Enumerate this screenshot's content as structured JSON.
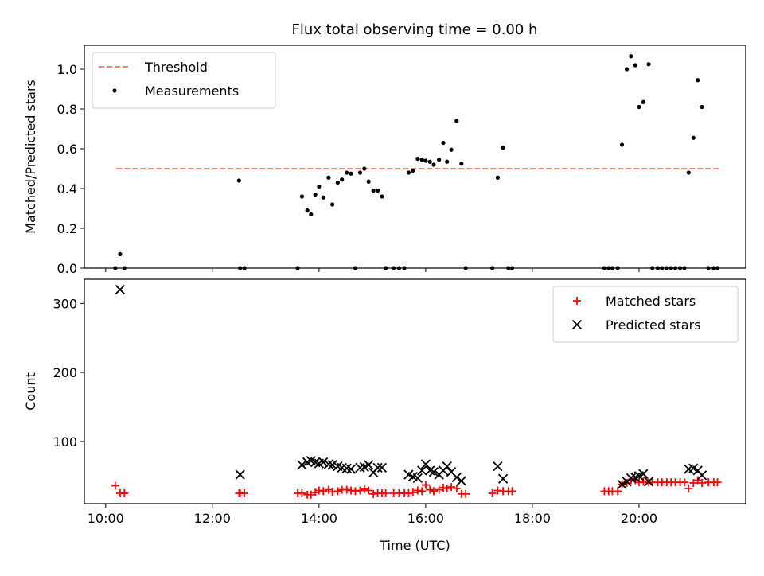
{
  "title": "Flux total observing time = 0.00 h",
  "chart_data": [
    {
      "type": "scatter",
      "ylabel": "Matched/Predicted stars",
      "xlabel": "",
      "xlim": [
        9.6,
        22.0
      ],
      "ylim": [
        0,
        1.12
      ],
      "yticks": [
        0.0,
        0.2,
        0.4,
        0.6,
        0.8,
        1.0
      ],
      "ytick_labels": [
        "0.0",
        "0.2",
        "0.4",
        "0.6",
        "0.8",
        "1.0"
      ],
      "legend": {
        "position": "top-left",
        "entries": [
          {
            "label": "Threshold",
            "style": "dashed-line",
            "color": "#ff7f7f"
          },
          {
            "label": "Measurements",
            "style": "dot",
            "color": "#000000"
          }
        ]
      },
      "threshold": {
        "value": 0.5,
        "x": [
          10.2,
          21.5
        ],
        "color": "#ff7f7f"
      },
      "series": [
        {
          "marker": "dot",
          "color": "#000000",
          "points": [
            [
              10.18,
              0.0
            ],
            [
              10.27,
              0.07
            ],
            [
              10.35,
              0.0
            ],
            [
              12.5,
              0.44
            ],
            [
              12.52,
              0.0
            ],
            [
              12.6,
              0.0
            ],
            [
              13.6,
              0.0
            ],
            [
              13.68,
              0.36
            ],
            [
              13.78,
              0.29
            ],
            [
              13.85,
              0.27
            ],
            [
              13.93,
              0.37
            ],
            [
              14.0,
              0.41
            ],
            [
              14.08,
              0.355
            ],
            [
              14.18,
              0.455
            ],
            [
              14.25,
              0.32
            ],
            [
              14.35,
              0.43
            ],
            [
              14.43,
              0.445
            ],
            [
              14.52,
              0.48
            ],
            [
              14.6,
              0.475
            ],
            [
              14.68,
              0.0
            ],
            [
              14.77,
              0.48
            ],
            [
              14.85,
              0.5
            ],
            [
              14.93,
              0.435
            ],
            [
              15.02,
              0.39
            ],
            [
              15.1,
              0.39
            ],
            [
              15.18,
              0.36
            ],
            [
              15.25,
              0.0
            ],
            [
              15.4,
              0.0
            ],
            [
              15.5,
              0.0
            ],
            [
              15.6,
              0.0
            ],
            [
              15.68,
              0.48
            ],
            [
              15.76,
              0.49
            ],
            [
              15.85,
              0.55
            ],
            [
              15.93,
              0.545
            ],
            [
              16.0,
              0.54
            ],
            [
              16.08,
              0.535
            ],
            [
              16.15,
              0.52
            ],
            [
              16.25,
              0.545
            ],
            [
              16.33,
              0.63
            ],
            [
              16.4,
              0.535
            ],
            [
              16.48,
              0.595
            ],
            [
              16.58,
              0.74
            ],
            [
              16.67,
              0.525
            ],
            [
              16.75,
              0.0
            ],
            [
              17.25,
              0.0
            ],
            [
              17.35,
              0.455
            ],
            [
              17.45,
              0.605
            ],
            [
              17.55,
              0.0
            ],
            [
              17.62,
              0.0
            ],
            [
              19.35,
              0.0
            ],
            [
              19.43,
              0.0
            ],
            [
              19.5,
              0.0
            ],
            [
              19.6,
              0.0
            ],
            [
              19.68,
              0.62
            ],
            [
              19.77,
              1.0
            ],
            [
              19.85,
              1.065
            ],
            [
              19.93,
              1.02
            ],
            [
              20.0,
              0.81
            ],
            [
              20.08,
              0.835
            ],
            [
              20.18,
              1.025
            ],
            [
              20.25,
              0.0
            ],
            [
              20.35,
              0.0
            ],
            [
              20.43,
              0.0
            ],
            [
              20.52,
              0.0
            ],
            [
              20.6,
              0.0
            ],
            [
              20.68,
              0.0
            ],
            [
              20.77,
              0.0
            ],
            [
              20.85,
              0.0
            ],
            [
              20.93,
              0.48
            ],
            [
              21.02,
              0.655
            ],
            [
              21.1,
              0.945
            ],
            [
              21.18,
              0.81
            ],
            [
              21.3,
              0.0
            ],
            [
              21.4,
              0.0
            ],
            [
              21.47,
              0.0
            ]
          ]
        }
      ]
    },
    {
      "type": "scatter",
      "ylabel": "Count",
      "xlabel": "Time (UTC)",
      "xlim": [
        9.6,
        22.0
      ],
      "ylim": [
        10,
        335
      ],
      "yticks": [
        100,
        200,
        300
      ],
      "ytick_labels": [
        "100",
        "200",
        "300"
      ],
      "xticks": [
        10,
        12,
        14,
        16,
        18,
        20
      ],
      "xtick_labels": [
        "10:00",
        "12:00",
        "14:00",
        "16:00",
        "18:00",
        "20:00"
      ],
      "legend": {
        "position": "top-right",
        "entries": [
          {
            "label": "Matched stars",
            "style": "plus",
            "color": "#ff0000"
          },
          {
            "label": "Predicted stars",
            "style": "cross",
            "color": "#000000"
          }
        ]
      },
      "series": [
        {
          "name": "Matched stars",
          "marker": "plus",
          "color": "#ff0000",
          "points": [
            [
              10.18,
              36
            ],
            [
              10.27,
              25
            ],
            [
              10.35,
              25
            ],
            [
              12.5,
              25
            ],
            [
              12.52,
              25
            ],
            [
              12.6,
              25
            ],
            [
              13.6,
              25
            ],
            [
              13.68,
              25
            ],
            [
              13.78,
              23
            ],
            [
              13.85,
              23
            ],
            [
              13.93,
              26
            ],
            [
              14.0,
              29
            ],
            [
              14.08,
              28
            ],
            [
              14.18,
              30
            ],
            [
              14.25,
              27
            ],
            [
              14.35,
              28
            ],
            [
              14.43,
              30
            ],
            [
              14.52,
              30
            ],
            [
              14.6,
              29
            ],
            [
              14.68,
              28
            ],
            [
              14.77,
              29
            ],
            [
              14.85,
              31
            ],
            [
              14.93,
              29
            ],
            [
              15.02,
              24
            ],
            [
              15.1,
              25
            ],
            [
              15.18,
              25
            ],
            [
              15.25,
              25
            ],
            [
              15.4,
              25
            ],
            [
              15.5,
              25
            ],
            [
              15.6,
              25
            ],
            [
              15.68,
              25
            ],
            [
              15.76,
              26
            ],
            [
              15.85,
              29
            ],
            [
              15.93,
              28
            ],
            [
              16.0,
              37
            ],
            [
              16.08,
              30
            ],
            [
              16.15,
              28
            ],
            [
              16.25,
              30
            ],
            [
              16.33,
              33
            ],
            [
              16.4,
              32
            ],
            [
              16.48,
              34
            ],
            [
              16.58,
              32
            ],
            [
              16.67,
              24
            ],
            [
              16.75,
              24
            ],
            [
              17.25,
              25
            ],
            [
              17.35,
              29
            ],
            [
              17.45,
              28
            ],
            [
              17.55,
              28
            ],
            [
              17.62,
              28
            ],
            [
              19.35,
              28
            ],
            [
              19.43,
              28
            ],
            [
              19.5,
              28
            ],
            [
              19.6,
              28
            ],
            [
              19.68,
              38
            ],
            [
              19.77,
              40
            ],
            [
              19.85,
              44
            ],
            [
              19.93,
              44
            ],
            [
              20.0,
              41
            ],
            [
              20.08,
              42
            ],
            [
              20.18,
              41
            ],
            [
              20.25,
              41
            ],
            [
              20.35,
              41
            ],
            [
              20.43,
              41
            ],
            [
              20.52,
              41
            ],
            [
              20.6,
              41
            ],
            [
              20.68,
              41
            ],
            [
              20.77,
              41
            ],
            [
              20.85,
              41
            ],
            [
              20.93,
              32
            ],
            [
              21.02,
              40
            ],
            [
              21.1,
              44
            ],
            [
              21.18,
              40
            ],
            [
              21.3,
              41
            ],
            [
              21.4,
              41
            ],
            [
              21.47,
              41
            ]
          ]
        },
        {
          "name": "Predicted stars",
          "marker": "cross",
          "color": "#000000",
          "points": [
            [
              10.27,
              320
            ],
            [
              12.52,
              52
            ],
            [
              13.68,
              66
            ],
            [
              13.78,
              70
            ],
            [
              13.85,
              72
            ],
            [
              13.93,
              70
            ],
            [
              14.0,
              68
            ],
            [
              14.08,
              70
            ],
            [
              14.18,
              67
            ],
            [
              14.25,
              66
            ],
            [
              14.35,
              64
            ],
            [
              14.43,
              62
            ],
            [
              14.52,
              61
            ],
            [
              14.6,
              60
            ],
            [
              14.77,
              62
            ],
            [
              14.85,
              63
            ],
            [
              14.93,
              66
            ],
            [
              15.02,
              55
            ],
            [
              15.1,
              62
            ],
            [
              15.18,
              62
            ],
            [
              15.68,
              52
            ],
            [
              15.76,
              49
            ],
            [
              15.85,
              47
            ],
            [
              15.93,
              58
            ],
            [
              16.0,
              67
            ],
            [
              16.08,
              58
            ],
            [
              16.15,
              56
            ],
            [
              16.25,
              52
            ],
            [
              16.33,
              58
            ],
            [
              16.4,
              64
            ],
            [
              16.48,
              56
            ],
            [
              16.58,
              48
            ],
            [
              16.67,
              43
            ],
            [
              17.35,
              64
            ],
            [
              17.45,
              46
            ],
            [
              19.68,
              38
            ],
            [
              19.77,
              42
            ],
            [
              19.85,
              47
            ],
            [
              19.93,
              48
            ],
            [
              20.0,
              50
            ],
            [
              20.08,
              53
            ],
            [
              20.18,
              42
            ],
            [
              20.93,
              60
            ],
            [
              21.02,
              61
            ],
            [
              21.1,
              58
            ],
            [
              21.18,
              51
            ]
          ]
        }
      ]
    }
  ]
}
